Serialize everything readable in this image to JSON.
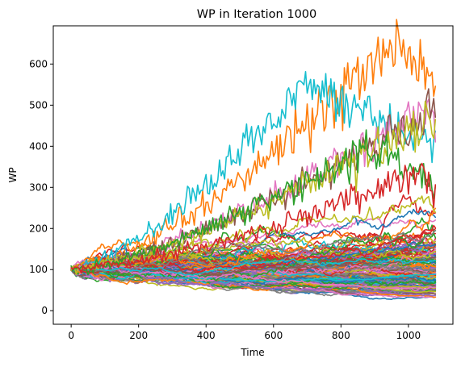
{
  "chart_data": {
    "type": "line",
    "title": "WP in Iteration 1000",
    "xlabel": "Time",
    "ylabel": "WP",
    "xlim": [
      -53,
      1132
    ],
    "ylim": [
      -33,
      693
    ],
    "x_ticks": [
      0,
      200,
      400,
      600,
      800,
      1000
    ],
    "y_ticks": [
      0,
      100,
      200,
      300,
      400,
      500,
      600
    ],
    "grid": false,
    "legend": "none",
    "x_range": [
      0,
      1080
    ],
    "start_value": 100,
    "palette": [
      "#1f77b4",
      "#ff7f0e",
      "#2ca02c",
      "#d62728",
      "#9467bd",
      "#8c564b",
      "#e377c2",
      "#7f7f7f",
      "#bcbd22",
      "#17becf"
    ],
    "series_summary": {
      "count": 160,
      "highlighted": [
        {
          "color": "#ff7f0e",
          "peak_x": 975,
          "peak_y": 660,
          "end_y": 560
        },
        {
          "color": "#17becf",
          "peak_x": 690,
          "peak_y": 550,
          "end_y": 400
        },
        {
          "color": "#e377c2",
          "peak_x": 1060,
          "peak_y": 500,
          "end_y": 420
        },
        {
          "color": "#8c564b",
          "peak_x": 1075,
          "peak_y": 490,
          "end_y": 480
        },
        {
          "color": "#bcbd22",
          "peak_x": 1070,
          "peak_y": 470,
          "end_y": 460
        },
        {
          "color": "#2ca02c",
          "peak_x": 900,
          "peak_y": 400,
          "end_y": 300
        },
        {
          "color": "#d62728",
          "peak_x": 1040,
          "peak_y": 330,
          "end_y": 290
        }
      ]
    }
  }
}
